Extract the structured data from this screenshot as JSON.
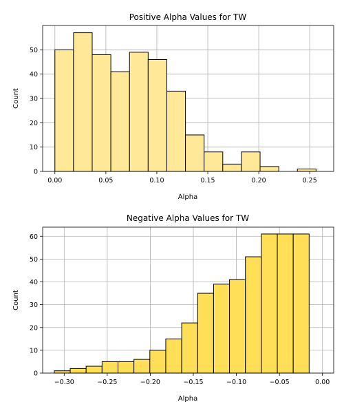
{
  "colors": {
    "positive_bar": "#ffe999",
    "negative_bar": "#ffdf57",
    "edge": "#000000",
    "grid": "#b0b0b0"
  },
  "chart_data": [
    {
      "type": "bar",
      "title": "Positive Alpha Values for TW",
      "xlabel": "Alpha",
      "ylabel": "Count",
      "bin_edges": [
        0.0,
        0.0183,
        0.0366,
        0.0549,
        0.0732,
        0.0915,
        0.1098,
        0.1281,
        0.1464,
        0.1647,
        0.183,
        0.2013,
        0.2196,
        0.2379,
        0.2562
      ],
      "values": [
        50,
        57,
        48,
        41,
        49,
        46,
        33,
        15,
        8,
        3,
        8,
        2,
        0,
        1
      ],
      "xlim": [
        -0.012,
        0.2735
      ],
      "ylim": [
        0,
        60
      ],
      "xticks": [
        0.0,
        0.05,
        0.1,
        0.15,
        0.2,
        0.25
      ],
      "xtick_labels": [
        "0.00",
        "0.05",
        "0.10",
        "0.15",
        "0.20",
        "0.25"
      ],
      "yticks": [
        0,
        10,
        20,
        30,
        40,
        50
      ],
      "ytick_labels": [
        "0",
        "10",
        "20",
        "30",
        "40",
        "50"
      ],
      "grid": true
    },
    {
      "type": "bar",
      "title": "Negative Alpha Values for TW",
      "xlabel": "Alpha",
      "ylabel": "Count",
      "bin_edges": [
        -0.3115,
        -0.293,
        -0.2745,
        -0.256,
        -0.2375,
        -0.219,
        -0.2005,
        -0.182,
        -0.1635,
        -0.145,
        -0.1265,
        -0.108,
        -0.0895,
        -0.071,
        -0.0525,
        -0.034,
        -0.0155
      ],
      "values": [
        1,
        2,
        3,
        5,
        5,
        6,
        10,
        15,
        22,
        35,
        39,
        41,
        51,
        61,
        61,
        61
      ],
      "xlim": [
        -0.325,
        0.013
      ],
      "ylim": [
        0,
        64
      ],
      "xticks": [
        -0.3,
        -0.25,
        -0.2,
        -0.15,
        -0.1,
        -0.05,
        0.0
      ],
      "xtick_labels": [
        "−0.30",
        "−0.25",
        "−0.20",
        "−0.15",
        "−0.10",
        "−0.05",
        "0.00"
      ],
      "yticks": [
        0,
        10,
        20,
        30,
        40,
        50,
        60
      ],
      "ytick_labels": [
        "0",
        "10",
        "20",
        "30",
        "40",
        "50",
        "60"
      ],
      "grid": true
    }
  ]
}
